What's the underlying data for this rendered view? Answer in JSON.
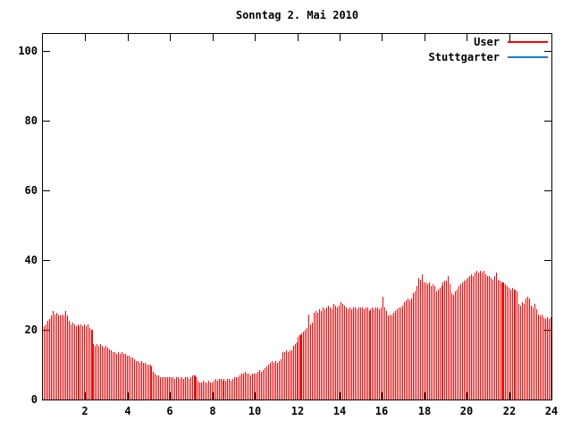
{
  "background_color": "#ffffff",
  "text_color": "#000000",
  "chart_data": {
    "type": "bar",
    "style": "impulses",
    "title": "Sonntag 2. Mai 2010",
    "xlabel": "",
    "ylabel": "",
    "xlim": [
      0,
      24
    ],
    "ylim": [
      0,
      105
    ],
    "grid": false,
    "legend_position": "top-right-inside",
    "x_ticks": [
      2,
      4,
      6,
      8,
      10,
      12,
      14,
      16,
      18,
      20,
      22,
      24
    ],
    "y_ticks": [
      0,
      20,
      40,
      60,
      80,
      100
    ],
    "x_tick_labels": [
      "2",
      "4",
      "6",
      "8",
      "10",
      "12",
      "14",
      "16",
      "18",
      "20",
      "22",
      "24"
    ],
    "y_tick_labels": [
      "0",
      "20",
      "40",
      "60",
      "80",
      "100"
    ],
    "interval_minutes": 5,
    "wide_bar_indices": [
      27,
      85,
      145,
      259
    ],
    "series": [
      {
        "name": "User",
        "color": "#ff0000",
        "visible_in_plot": true,
        "values": [
          21,
          21.5,
          22.5,
          23,
          24,
          25.5,
          24.5,
          25,
          24.5,
          24,
          24.5,
          24,
          25.5,
          24,
          22.5,
          21.5,
          22,
          21.5,
          21,
          21.5,
          21,
          21.5,
          21,
          21.5,
          21,
          21.5,
          20.5,
          20,
          16,
          15.5,
          16,
          15.5,
          16,
          15.5,
          15,
          15.5,
          15,
          14.5,
          14,
          13.5,
          13.5,
          13,
          13.5,
          13,
          13.5,
          13,
          13,
          12.5,
          12.5,
          12,
          12,
          11.5,
          11,
          11,
          10.5,
          11,
          10.5,
          10.5,
          10,
          10,
          10,
          9.5,
          8,
          7.5,
          7,
          7,
          6.5,
          6.5,
          6.5,
          6.5,
          6.5,
          6.5,
          6.5,
          6.5,
          6,
          6.5,
          6.5,
          6,
          6.5,
          6,
          6.5,
          6.5,
          6,
          6.5,
          7,
          7,
          6.5,
          5.5,
          5,
          5,
          5.5,
          5,
          5,
          5.5,
          5,
          5,
          5.5,
          6,
          5.5,
          6,
          6,
          5.5,
          6,
          5.5,
          6,
          6,
          5.5,
          6,
          6.5,
          6.5,
          6.5,
          7,
          7.5,
          7.5,
          8,
          7.5,
          7.5,
          7,
          7.5,
          7.5,
          7.5,
          8,
          8.5,
          8,
          8.5,
          9,
          9.5,
          10,
          10.5,
          11,
          10.5,
          11,
          10.5,
          11,
          11.5,
          13.5,
          13.5,
          14,
          13.5,
          14,
          14,
          15.5,
          16,
          16.5,
          18,
          18.5,
          19,
          19.5,
          20,
          20.5,
          24.5,
          21.5,
          22,
          25,
          25.5,
          25,
          26,
          25.5,
          26.5,
          26,
          26.5,
          27,
          26.5,
          26,
          27.5,
          27,
          26.5,
          27,
          28,
          27.5,
          27,
          26.5,
          26,
          26.5,
          26,
          26.5,
          26.5,
          26,
          26.5,
          26.5,
          26.5,
          26,
          26.5,
          26.5,
          25.5,
          26,
          26.5,
          26,
          26.5,
          26.5,
          26,
          26.5,
          29.5,
          26.5,
          25.5,
          24,
          24.5,
          24,
          25,
          25.5,
          26,
          26.5,
          26.5,
          27,
          28,
          28.5,
          29,
          28.5,
          29,
          30.5,
          31,
          32.5,
          35,
          34.5,
          36,
          33.5,
          33.5,
          33,
          33.5,
          32.5,
          33,
          32.5,
          31,
          31.5,
          32,
          32.5,
          33.5,
          34,
          34,
          35.5,
          33,
          30.5,
          30,
          31,
          31.5,
          32.5,
          33,
          33.5,
          34,
          34.5,
          35,
          35.5,
          36,
          35.5,
          36.5,
          37,
          36.5,
          37,
          36.5,
          37,
          36,
          35.5,
          35.5,
          35,
          34.5,
          35.5,
          36.5,
          34.5,
          34,
          33.5,
          33.5,
          33,
          32.5,
          32,
          31.5,
          32,
          31.5,
          31.5,
          31,
          27.5,
          27,
          28,
          27.5,
          29,
          29.5,
          29,
          27,
          26.5,
          27.5,
          26,
          24.5,
          24,
          24.5,
          23.5,
          23,
          23.5,
          23,
          23.5
        ]
      },
      {
        "name": "Stuttgarter",
        "color": "#1b7ad6",
        "visible_in_plot": false,
        "values": []
      }
    ]
  }
}
